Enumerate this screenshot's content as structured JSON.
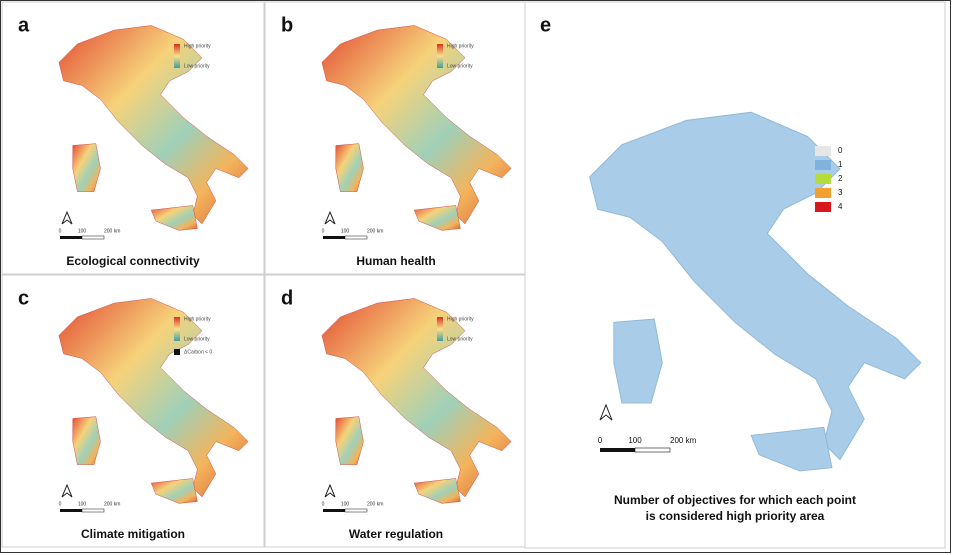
{
  "panels": [
    {
      "letter": "a",
      "caption": "Ecological connectivity",
      "legend": [
        "High priority",
        "Low priority"
      ],
      "scale": [
        "0",
        "100",
        "200 km"
      ]
    },
    {
      "letter": "b",
      "caption": "Human health",
      "legend": [
        "High priority",
        "Low priority"
      ],
      "scale": [
        "0",
        "100",
        "200 km"
      ]
    },
    {
      "letter": "c",
      "caption": "Climate mitigation",
      "legend": [
        "High priority",
        "Low priority",
        "ΔCarbon < 0"
      ],
      "scale": [
        "0",
        "100",
        "200 km"
      ]
    },
    {
      "letter": "d",
      "caption": "Water regulation",
      "legend": [
        "High priority",
        "Low priority"
      ],
      "scale": [
        "0",
        "100",
        "200 km"
      ]
    }
  ],
  "summary": {
    "letter": "e",
    "legend": [
      {
        "label": "0",
        "color": "#e6e6e6"
      },
      {
        "label": "1",
        "color": "#7fb3de"
      },
      {
        "label": "2",
        "color": "#b5dc3b"
      },
      {
        "label": "3",
        "color": "#f4a02e"
      },
      {
        "label": "4",
        "color": "#d7191c"
      }
    ],
    "scale": [
      "0",
      "100",
      "200 km"
    ],
    "caption": [
      "Number of objectives for which each point",
      "is considered high priority area"
    ]
  }
}
